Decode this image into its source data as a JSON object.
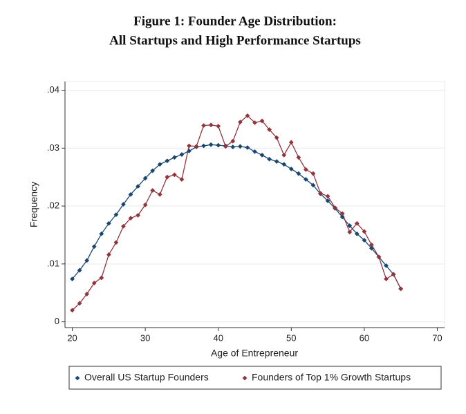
{
  "chart_data": {
    "type": "line",
    "title": "Figure 1: Founder Age Distribution:",
    "subtitle": "All Startups and High Performance Startups",
    "x_label": "Age of Entrepreneur",
    "y_label": "Frequency",
    "x": [
      20,
      21,
      22,
      23,
      24,
      25,
      26,
      27,
      28,
      29,
      30,
      31,
      32,
      33,
      34,
      35,
      36,
      37,
      38,
      39,
      40,
      41,
      42,
      43,
      44,
      45,
      46,
      47,
      48,
      49,
      50,
      51,
      52,
      53,
      54,
      55,
      56,
      57,
      58,
      59,
      60,
      61,
      62,
      63,
      64,
      65
    ],
    "series": [
      {
        "name": "Overall US Startup Founders",
        "color": "#1a476f",
        "values": [
          0.0074,
          0.0089,
          0.0106,
          0.013,
          0.0152,
          0.017,
          0.0185,
          0.0203,
          0.022,
          0.0234,
          0.0248,
          0.0261,
          0.0272,
          0.0278,
          0.0284,
          0.0289,
          0.0295,
          0.0302,
          0.0304,
          0.0306,
          0.0305,
          0.0304,
          0.0302,
          0.0303,
          0.0301,
          0.0294,
          0.0288,
          0.0281,
          0.0277,
          0.0272,
          0.0264,
          0.0256,
          0.0246,
          0.0236,
          0.0221,
          0.0209,
          0.0196,
          0.0181,
          0.0166,
          0.0152,
          0.0141,
          0.0127,
          0.0112,
          0.0097,
          0.0082,
          0.0057
        ]
      },
      {
        "name": "Founders of Top 1% Growth Startups",
        "color": "#90353b",
        "values": [
          0.002,
          0.0032,
          0.0048,
          0.0067,
          0.0076,
          0.0116,
          0.0137,
          0.0165,
          0.0179,
          0.0184,
          0.0202,
          0.0227,
          0.022,
          0.025,
          0.0254,
          0.0246,
          0.0304,
          0.0303,
          0.0339,
          0.034,
          0.0338,
          0.0303,
          0.0312,
          0.0345,
          0.0356,
          0.0344,
          0.0347,
          0.0332,
          0.0318,
          0.0288,
          0.031,
          0.0284,
          0.0263,
          0.0256,
          0.0222,
          0.0217,
          0.0197,
          0.0187,
          0.0155,
          0.017,
          0.0156,
          0.0133,
          0.0112,
          0.0074,
          0.0082,
          0.0057
        ]
      }
    ],
    "xlim": [
      19,
      71
    ],
    "xticks": [
      20,
      30,
      40,
      50,
      60,
      70
    ],
    "ylim": [
      -0.001,
      0.0415
    ],
    "yticks": [
      0,
      {
        "value": 0.01,
        "label": ".01"
      },
      {
        "value": 0.02,
        "label": ".02"
      },
      {
        "value": 0.03,
        "label": ".03"
      },
      {
        "value": 0.04,
        "label": ".04"
      }
    ],
    "grid": true,
    "legend": "bottom"
  }
}
